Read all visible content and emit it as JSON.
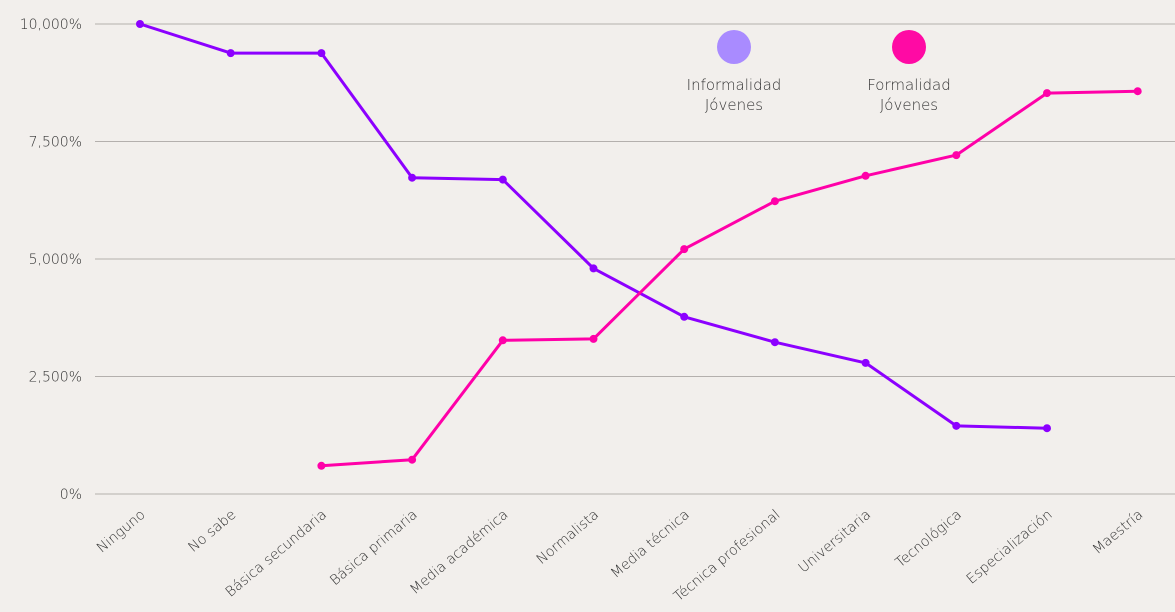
{
  "chart_data": {
    "type": "line",
    "title": "",
    "xlabel": "",
    "ylabel": "",
    "categories": [
      "Ninguno",
      "No sabe",
      "Básica secundaria",
      "Básica primaria",
      "Media académica",
      "Normalista",
      "Media técnica",
      "Técnica profesional",
      "Universitaria",
      "Tecnológica",
      "Especialización",
      "Maestría"
    ],
    "ylim": [
      0,
      10000
    ],
    "yticks": [
      0,
      2500,
      5000,
      7500,
      10000
    ],
    "ytick_labels": [
      "0%",
      "2,500%",
      "5,000%",
      "7,500%",
      "10,000%"
    ],
    "grid": "horizontal",
    "legend_position": "top-right",
    "series": [
      {
        "name": "Informalidad Jóvenes",
        "legend_lines": [
          "Informalidad",
          "Jóvenes"
        ],
        "color": "#8c00ff",
        "legend_color": "#a98bff",
        "values": [
          10000,
          9380,
          9380,
          6730,
          6690,
          4800,
          3770,
          3230,
          2790,
          1450,
          1400,
          null
        ]
      },
      {
        "name": "Formalidad Jóvenes",
        "legend_lines": [
          "Formalidad",
          "Jóvenes"
        ],
        "color": "#ff00a8",
        "legend_color": "#ff0aa4",
        "values": [
          null,
          null,
          600,
          730,
          3270,
          3300,
          5210,
          6230,
          6770,
          7210,
          8530,
          8570
        ]
      }
    ]
  }
}
